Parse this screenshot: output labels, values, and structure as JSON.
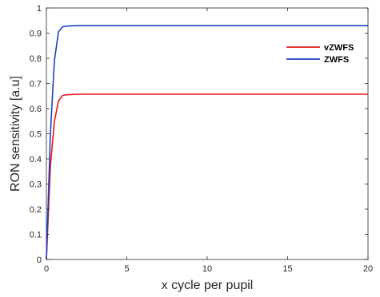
{
  "chart_data": {
    "type": "line",
    "title": "",
    "xlabel": "x cycle per pupil",
    "ylabel": "RON sensitivity [a.u]",
    "xlim": [
      0,
      20
    ],
    "ylim": [
      0,
      1
    ],
    "xticks": [
      0,
      5,
      10,
      15,
      20
    ],
    "yticks": [
      0,
      0.1,
      0.2,
      0.3,
      0.4,
      0.5,
      0.6,
      0.7,
      0.8,
      0.9,
      1
    ],
    "grid": false,
    "legend_position": "top-right",
    "series": [
      {
        "name": "vZWFS",
        "color": "#e31a1c",
        "x": [
          0,
          0.25,
          0.5,
          0.75,
          1.0,
          1.25,
          1.5,
          2,
          3,
          5,
          10,
          15,
          20
        ],
        "y": [
          0,
          0.37,
          0.55,
          0.63,
          0.652,
          0.655,
          0.656,
          0.657,
          0.657,
          0.657,
          0.657,
          0.657,
          0.657
        ]
      },
      {
        "name": "ZWFS",
        "color": "#1f3fbf",
        "x": [
          0,
          0.25,
          0.5,
          0.75,
          1.0,
          1.25,
          1.5,
          2,
          3,
          5,
          10,
          15,
          20
        ],
        "y": [
          0,
          0.5,
          0.79,
          0.905,
          0.925,
          0.928,
          0.929,
          0.93,
          0.93,
          0.93,
          0.93,
          0.93,
          0.93
        ]
      }
    ]
  }
}
